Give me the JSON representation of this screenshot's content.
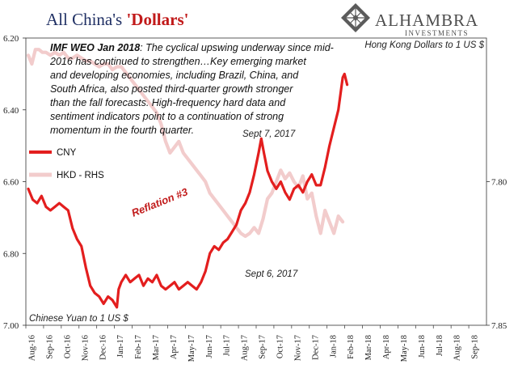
{
  "title": {
    "main": "All China's ",
    "accent": "'Dollars'"
  },
  "logo": {
    "name": "ALHAMBRA",
    "sub": "INVESTMENTS",
    "icon": "diamond-lattice-logo"
  },
  "quote": {
    "source": "IMF WEO Jan 2018",
    "lines": [
      ":  The cyclical upswing underway since mid-",
      "2016  has continued to strengthen…Key emerging market",
      "and developing economies, including Brazil, China, and",
      "South Africa, also posted third-quarter growth stronger",
      "than the fall forecasts. High-frequency hard data and",
      "sentiment indicators point to a continuation of strong",
      "momentum in the fourth quarter."
    ]
  },
  "annotations": {
    "sept7": "Sept 7, 2017",
    "sept6": "Sept 6, 2017",
    "reflation": "Reflation #3"
  },
  "colors": {
    "cny": "#e31e1e",
    "hkd": "#f2cccc",
    "title": "#1f2f63",
    "accent": "#c11a1a"
  },
  "chart_data": {
    "type": "line",
    "left_axis_label": "Chinese Yuan to 1 US $",
    "right_axis_label": "Hong Kong Dollars to 1 US $",
    "left_axis": {
      "min": 6.2,
      "max": 7.0,
      "inverted": true,
      "ticks": [
        "6.20",
        "6.40",
        "6.60",
        "6.80",
        "7.00"
      ]
    },
    "right_axis": {
      "min": 7.75,
      "max": 7.85,
      "inverted": true,
      "ticks": [
        "7.80",
        "7.85"
      ]
    },
    "x_categories": [
      "Aug-16",
      "Sep-16",
      "Oct-16",
      "Nov-16",
      "Dec-16",
      "Jan-17",
      "Feb-17",
      "Mar-17",
      "Apr-17",
      "May-17",
      "Jun-17",
      "Jul-17",
      "Aug-17",
      "Sep-17",
      "Oct-17",
      "Nov-17",
      "Dec-17",
      "Jan-18",
      "Feb-18",
      "Mar-18",
      "Apr-18",
      "May-18",
      "Jun-18",
      "Jul-18",
      "Aug-18",
      "Sep-18"
    ],
    "series": [
      {
        "name": "CNY",
        "axis": "left",
        "points": [
          [
            0.0,
            6.62
          ],
          [
            0.25,
            6.65
          ],
          [
            0.5,
            6.66
          ],
          [
            0.75,
            6.64
          ],
          [
            1.0,
            6.67
          ],
          [
            1.25,
            6.68
          ],
          [
            1.5,
            6.67
          ],
          [
            1.75,
            6.66
          ],
          [
            2.0,
            6.67
          ],
          [
            2.25,
            6.68
          ],
          [
            2.5,
            6.73
          ],
          [
            2.75,
            6.76
          ],
          [
            3.0,
            6.78
          ],
          [
            3.25,
            6.84
          ],
          [
            3.5,
            6.89
          ],
          [
            3.75,
            6.91
          ],
          [
            4.0,
            6.92
          ],
          [
            4.25,
            6.94
          ],
          [
            4.5,
            6.92
          ],
          [
            4.75,
            6.93
          ],
          [
            5.0,
            6.95
          ],
          [
            5.1,
            6.9
          ],
          [
            5.25,
            6.88
          ],
          [
            5.5,
            6.86
          ],
          [
            5.75,
            6.88
          ],
          [
            6.0,
            6.87
          ],
          [
            6.25,
            6.86
          ],
          [
            6.5,
            6.89
          ],
          [
            6.75,
            6.87
          ],
          [
            7.0,
            6.88
          ],
          [
            7.25,
            6.86
          ],
          [
            7.5,
            6.89
          ],
          [
            7.75,
            6.9
          ],
          [
            8.0,
            6.89
          ],
          [
            8.25,
            6.88
          ],
          [
            8.5,
            6.9
          ],
          [
            8.75,
            6.89
          ],
          [
            9.0,
            6.88
          ],
          [
            9.25,
            6.89
          ],
          [
            9.5,
            6.9
          ],
          [
            9.75,
            6.88
          ],
          [
            10.0,
            6.85
          ],
          [
            10.25,
            6.8
          ],
          [
            10.5,
            6.78
          ],
          [
            10.75,
            6.79
          ],
          [
            11.0,
            6.77
          ],
          [
            11.25,
            6.76
          ],
          [
            11.5,
            6.74
          ],
          [
            11.75,
            6.72
          ],
          [
            12.0,
            6.68
          ],
          [
            12.25,
            6.66
          ],
          [
            12.5,
            6.63
          ],
          [
            12.75,
            6.58
          ],
          [
            13.0,
            6.52
          ],
          [
            13.15,
            6.48
          ],
          [
            13.3,
            6.52
          ],
          [
            13.5,
            6.57
          ],
          [
            13.75,
            6.6
          ],
          [
            14.0,
            6.62
          ],
          [
            14.25,
            6.6
          ],
          [
            14.5,
            6.63
          ],
          [
            14.75,
            6.65
          ],
          [
            15.0,
            6.62
          ],
          [
            15.25,
            6.61
          ],
          [
            15.5,
            6.63
          ],
          [
            15.75,
            6.6
          ],
          [
            16.0,
            6.58
          ],
          [
            16.25,
            6.61
          ],
          [
            16.5,
            6.61
          ],
          [
            16.75,
            6.56
          ],
          [
            17.0,
            6.5
          ],
          [
            17.25,
            6.45
          ],
          [
            17.5,
            6.4
          ],
          [
            17.75,
            6.31
          ],
          [
            17.85,
            6.3
          ],
          [
            18.0,
            6.33
          ]
        ]
      },
      {
        "name": "HKD - RHS",
        "axis": "right",
        "points": [
          [
            0.0,
            7.756
          ],
          [
            0.2,
            7.759
          ],
          [
            0.4,
            7.754
          ],
          [
            0.6,
            7.754
          ],
          [
            0.8,
            7.755
          ],
          [
            1.0,
            7.755
          ],
          [
            1.25,
            7.756
          ],
          [
            1.5,
            7.755
          ],
          [
            1.75,
            7.756
          ],
          [
            2.0,
            7.755
          ],
          [
            2.25,
            7.757
          ],
          [
            2.5,
            7.757
          ],
          [
            2.75,
            7.756
          ],
          [
            3.0,
            7.757
          ],
          [
            3.25,
            7.758
          ],
          [
            3.5,
            7.758
          ],
          [
            3.75,
            7.759
          ],
          [
            4.0,
            7.76
          ],
          [
            4.25,
            7.759
          ],
          [
            4.5,
            7.759
          ],
          [
            4.75,
            7.761
          ],
          [
            5.0,
            7.76
          ],
          [
            5.25,
            7.76
          ],
          [
            5.5,
            7.762
          ],
          [
            5.75,
            7.764
          ],
          [
            6.0,
            7.766
          ],
          [
            6.25,
            7.768
          ],
          [
            6.5,
            7.77
          ],
          [
            6.75,
            7.772
          ],
          [
            7.0,
            7.774
          ],
          [
            7.25,
            7.776
          ],
          [
            7.5,
            7.78
          ],
          [
            7.75,
            7.786
          ],
          [
            8.0,
            7.79
          ],
          [
            8.25,
            7.788
          ],
          [
            8.5,
            7.786
          ],
          [
            8.75,
            7.79
          ],
          [
            9.0,
            7.792
          ],
          [
            9.25,
            7.794
          ],
          [
            9.5,
            7.796
          ],
          [
            9.75,
            7.798
          ],
          [
            10.0,
            7.8
          ],
          [
            10.25,
            7.804
          ],
          [
            10.5,
            7.806
          ],
          [
            10.75,
            7.808
          ],
          [
            11.0,
            7.81
          ],
          [
            11.25,
            7.812
          ],
          [
            11.5,
            7.814
          ],
          [
            11.75,
            7.816
          ],
          [
            12.0,
            7.818
          ],
          [
            12.25,
            7.819
          ],
          [
            12.5,
            7.818
          ],
          [
            12.75,
            7.816
          ],
          [
            13.0,
            7.818
          ],
          [
            13.25,
            7.813
          ],
          [
            13.5,
            7.806
          ],
          [
            13.75,
            7.804
          ],
          [
            14.0,
            7.8
          ],
          [
            14.25,
            7.796
          ],
          [
            14.5,
            7.799
          ],
          [
            14.75,
            7.797
          ],
          [
            15.0,
            7.8
          ],
          [
            15.25,
            7.802
          ],
          [
            15.5,
            7.798
          ],
          [
            15.75,
            7.806
          ],
          [
            16.0,
            7.804
          ],
          [
            16.25,
            7.812
          ],
          [
            16.5,
            7.818
          ],
          [
            16.75,
            7.81
          ],
          [
            17.0,
            7.814
          ],
          [
            17.25,
            7.818
          ],
          [
            17.5,
            7.812
          ],
          [
            17.75,
            7.814
          ]
        ]
      }
    ],
    "legend": [
      {
        "name": "CNY",
        "color": "#e31e1e"
      },
      {
        "name": "HKD - RHS",
        "color": "#f2cccc"
      }
    ]
  }
}
